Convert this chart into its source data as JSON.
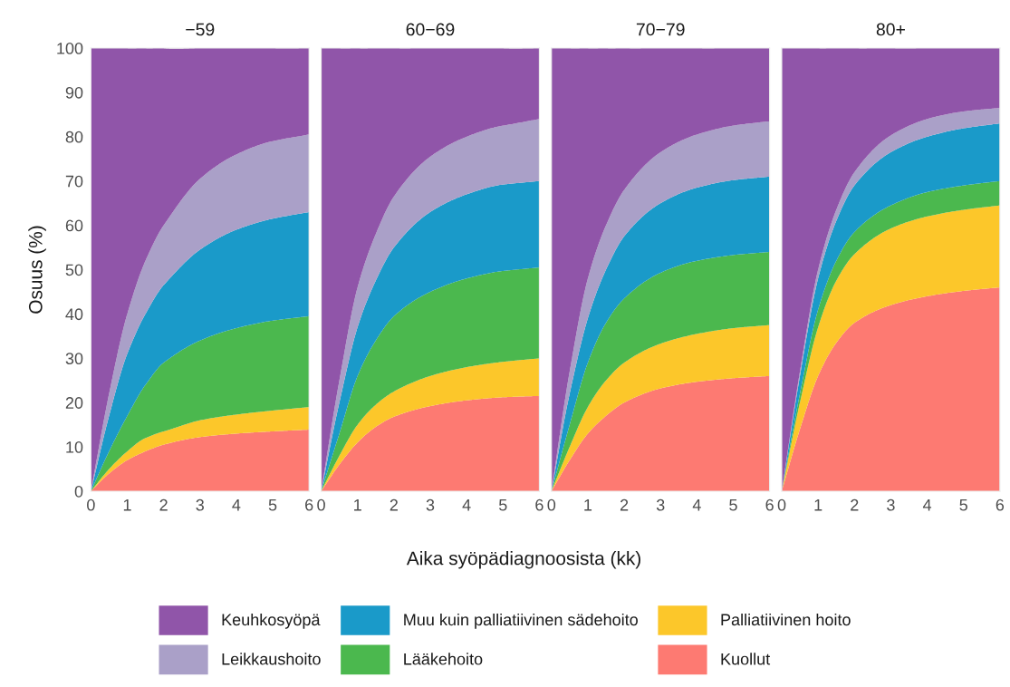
{
  "chart_data": [
    {
      "type": "area",
      "stacked": true,
      "title": "−59",
      "ylabel": "Osuus (%)",
      "x": [
        0,
        0.5,
        1,
        1.5,
        2,
        3,
        4,
        5,
        6
      ],
      "xlim": [
        0,
        6
      ],
      "ylim": [
        0,
        100
      ],
      "xticks": [
        0,
        1,
        2,
        3,
        4,
        5,
        6
      ],
      "yticks": [
        0,
        10,
        20,
        30,
        40,
        50,
        60,
        70,
        80,
        90,
        100
      ],
      "grid": true,
      "legend": "bottom",
      "series": [
        {
          "name": "Kuollut",
          "color": "#fd7a72",
          "values": [
            0,
            4,
            7,
            9,
            10.5,
            12.2,
            13,
            13.5,
            13.9
          ]
        },
        {
          "name": "Palliatiivinen hoito",
          "color": "#fcc72a",
          "values": [
            0,
            1,
            2,
            3,
            3,
            3.8,
            4.3,
            4.7,
            5.1
          ]
        },
        {
          "name": "Lääkehoito",
          "color": "#4bb84e",
          "values": [
            0,
            4,
            8,
            12,
            15.5,
            18,
            19.5,
            20.3,
            20.5
          ]
        },
        {
          "name": "Muu kuin palliatiivinen sädehoito",
          "color": "#1a9ac9",
          "values": [
            0,
            8,
            14,
            16,
            17.5,
            20.5,
            22.2,
            23,
            23.5
          ]
        },
        {
          "name": "Leikkaushoito",
          "color": "#aaa0c8",
          "values": [
            0,
            5,
            9,
            12,
            13.5,
            16,
            17,
            17.5,
            17.5
          ]
        },
        {
          "name": "Keuhkosyöpä",
          "color": "#9055a9",
          "values": [
            100,
            78,
            60,
            48,
            40,
            29.5,
            24,
            21,
            19.5
          ]
        }
      ]
    },
    {
      "type": "area",
      "stacked": true,
      "title": "60−69",
      "xlabel": "Aika syöpädiagnoosista (kk)",
      "x": [
        0,
        0.5,
        1,
        1.5,
        2,
        3,
        4,
        5,
        6
      ],
      "xlim": [
        0,
        6
      ],
      "ylim": [
        0,
        100
      ],
      "xticks": [
        0,
        1,
        2,
        3,
        4,
        5,
        6
      ],
      "yticks": [
        0,
        10,
        20,
        30,
        40,
        50,
        60,
        70,
        80,
        90,
        100
      ],
      "grid": true,
      "tick_labels": "x",
      "series": [
        {
          "color": "#fd7a72",
          "values": [
            0,
            6,
            11,
            14.5,
            16.8,
            19.2,
            20.5,
            21.2,
            21.5
          ]
        },
        {
          "color": "#fcc72a",
          "values": [
            0,
            2,
            4,
            5,
            5.7,
            6.8,
            7.5,
            8,
            8.5
          ]
        },
        {
          "color": "#4bb84e",
          "values": [
            0,
            5,
            11,
            14.5,
            17,
            19,
            20,
            20.5,
            20.5
          ]
        },
        {
          "color": "#1a9ac9",
          "values": [
            0,
            7,
            11,
            13.5,
            15.5,
            18,
            19,
            19.5,
            19.5
          ]
        },
        {
          "color": "#aaa0c8",
          "values": [
            0,
            5,
            9,
            10.5,
            11.5,
            12.5,
            13,
            13.3,
            14
          ]
        },
        {
          "color": "#9055a9",
          "values": [
            100,
            75,
            54,
            42,
            33.5,
            24.5,
            20,
            17.5,
            16
          ]
        }
      ]
    },
    {
      "type": "area",
      "stacked": true,
      "title": "70−79",
      "x": [
        0,
        0.5,
        1,
        1.5,
        2,
        3,
        4,
        5,
        6
      ],
      "xlim": [
        0,
        6
      ],
      "ylim": [
        0,
        100
      ],
      "xticks": [
        0,
        1,
        2,
        3,
        4,
        5,
        6
      ],
      "yticks": [
        0,
        10,
        20,
        30,
        40,
        50,
        60,
        70,
        80,
        90,
        100
      ],
      "grid": true,
      "tick_labels": "x",
      "series": [
        {
          "color": "#fd7a72",
          "values": [
            0,
            7,
            13,
            17,
            20,
            23.2,
            24.7,
            25.5,
            26
          ]
        },
        {
          "color": "#fcc72a",
          "values": [
            0,
            3,
            6,
            8,
            9,
            10.1,
            10.8,
            11.3,
            11.5
          ]
        },
        {
          "color": "#4bb84e",
          "values": [
            0,
            5,
            10,
            13,
            14.5,
            16,
            16.5,
            16.5,
            16.5
          ]
        },
        {
          "color": "#1a9ac9",
          "values": [
            0,
            7,
            10,
            12,
            14,
            15.7,
            16.5,
            16.9,
            17
          ]
        },
        {
          "color": "#aaa0c8",
          "values": [
            0,
            5,
            9,
            10,
            10.5,
            11.5,
            12,
            12.3,
            12.5
          ]
        },
        {
          "color": "#9055a9",
          "values": [
            100,
            73,
            52,
            40,
            32,
            23.5,
            19.5,
            17.5,
            16.5
          ]
        }
      ]
    },
    {
      "type": "area",
      "stacked": true,
      "title": "80+",
      "x": [
        0,
        0.5,
        1,
        1.5,
        2,
        3,
        4,
        5,
        6
      ],
      "xlim": [
        0,
        6
      ],
      "ylim": [
        0,
        100
      ],
      "xticks": [
        0,
        1,
        2,
        3,
        4,
        5,
        6
      ],
      "yticks": [
        0,
        10,
        20,
        30,
        40,
        50,
        60,
        70,
        80,
        90,
        100
      ],
      "grid": true,
      "tick_labels": "x",
      "series": [
        {
          "color": "#fd7a72",
          "values": [
            0,
            14,
            26,
            33.5,
            38,
            42,
            44,
            45.2,
            46
          ]
        },
        {
          "color": "#fcc72a",
          "values": [
            0,
            6,
            11,
            14,
            15.5,
            17.3,
            18,
            18.3,
            18.5
          ]
        },
        {
          "color": "#4bb84e",
          "values": [
            0,
            2,
            4,
            4.5,
            5,
            5.2,
            5.5,
            5.5,
            5.5
          ]
        },
        {
          "color": "#1a9ac9",
          "values": [
            0,
            4,
            7,
            9,
            10.5,
            12,
            12.5,
            12.9,
            13
          ]
        },
        {
          "color": "#aaa0c8",
          "values": [
            0,
            1,
            2,
            2.5,
            3,
            3.8,
            4,
            3.8,
            3.5
          ]
        },
        {
          "color": "#9055a9",
          "values": [
            100,
            73,
            50,
            36.5,
            28,
            19.7,
            16,
            14.3,
            13.5
          ]
        }
      ]
    }
  ]
}
